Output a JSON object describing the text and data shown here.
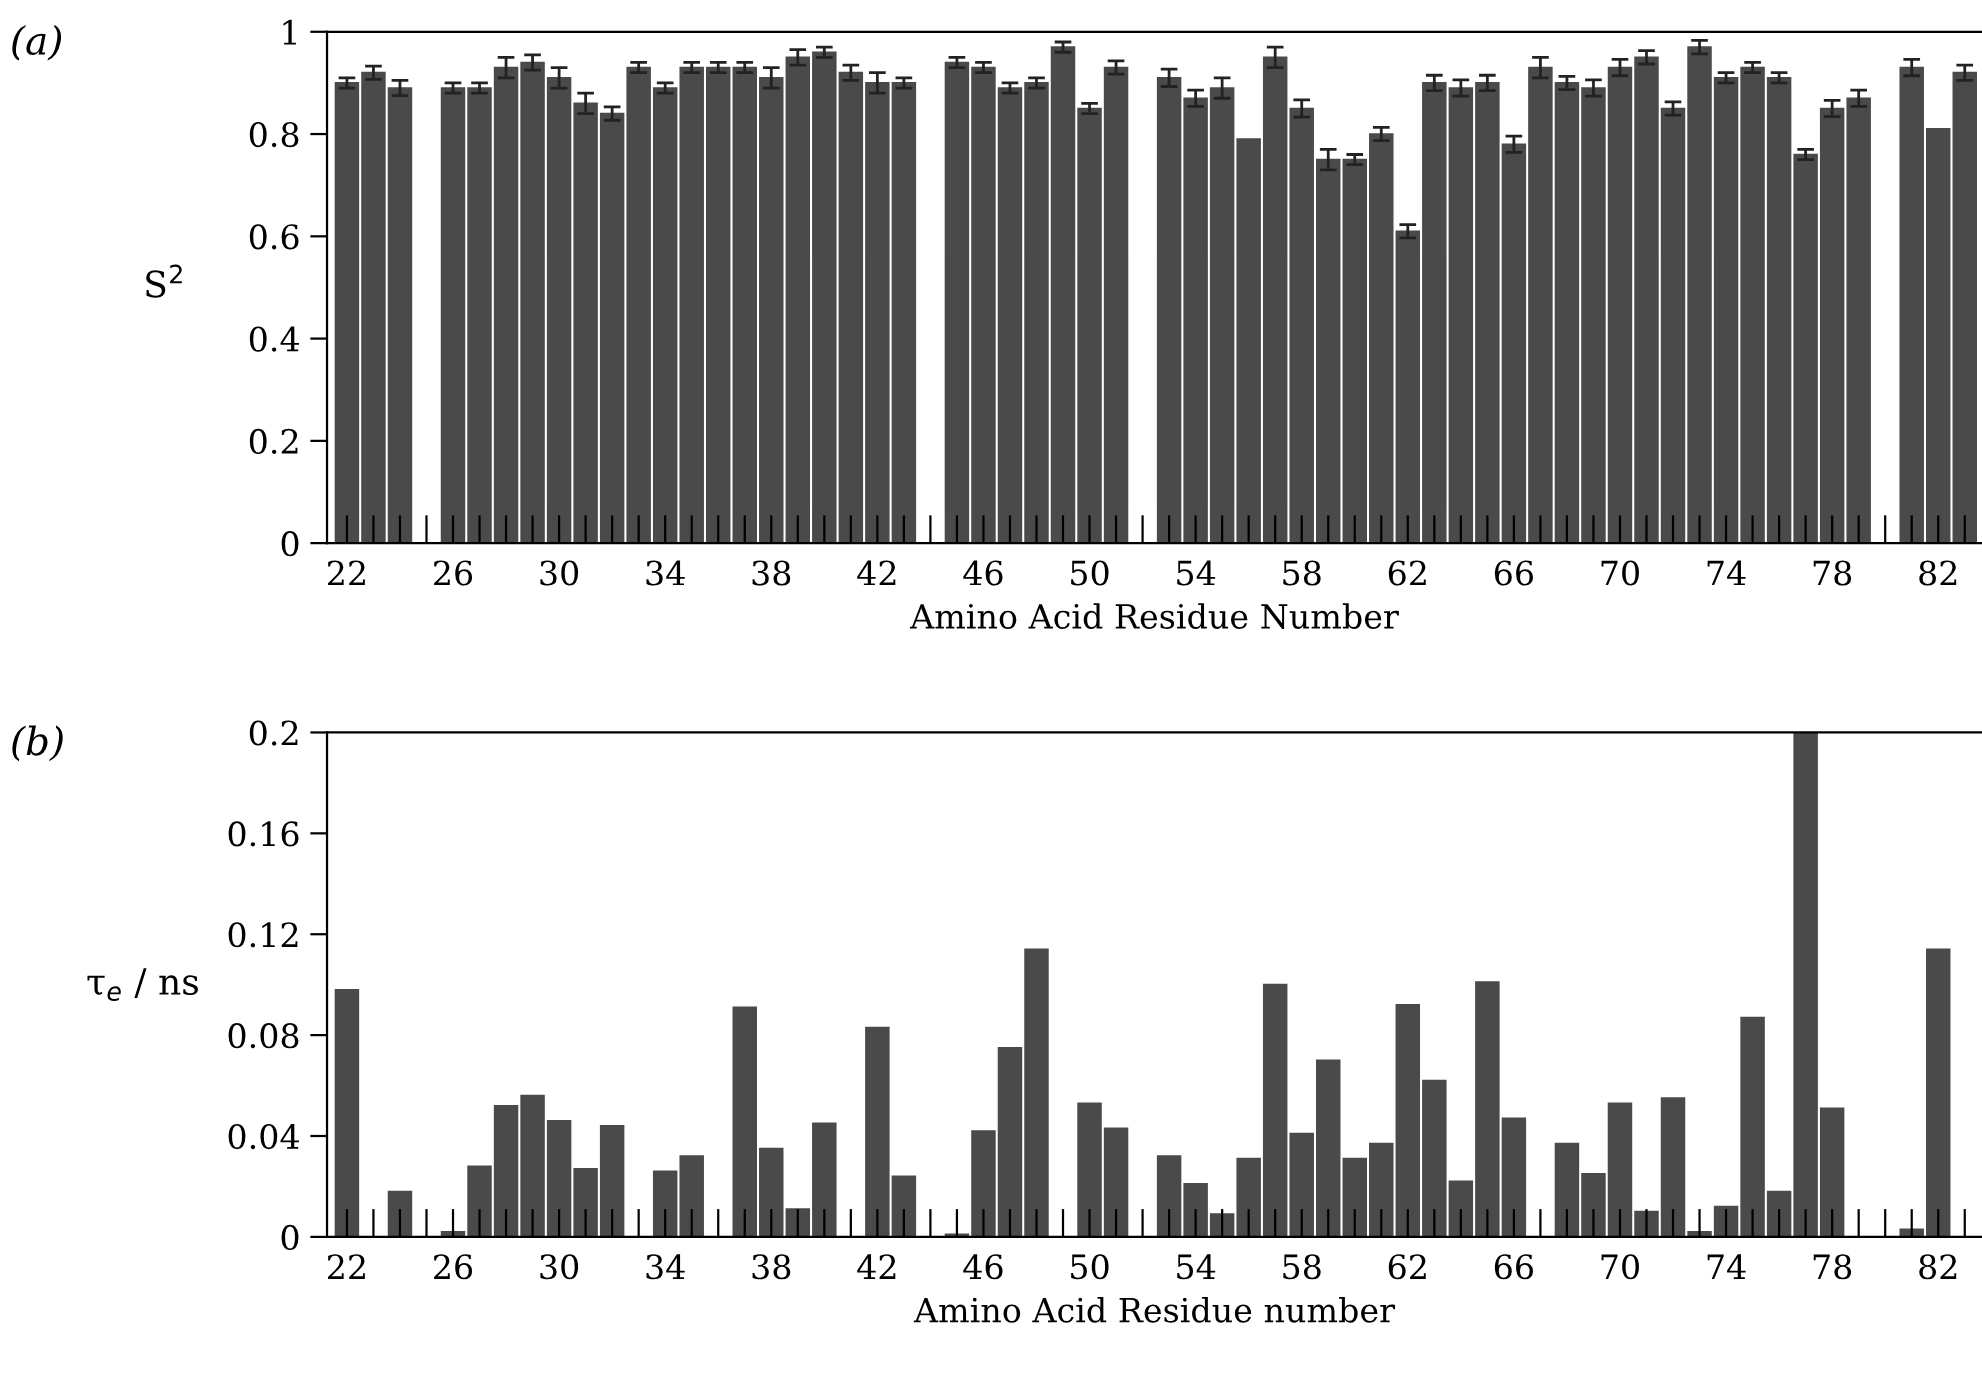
{
  "chart_data": [
    {
      "type": "bar",
      "ylabel": "S$^{2}$",
      "xlabel": "Amino Acid Residue Number",
      "annotations": [
        "(a)"
      ],
      "categories": [
        "22",
        null,
        null,
        null,
        "26",
        null,
        null,
        null,
        "30",
        null,
        null,
        null,
        "34",
        null,
        null,
        null,
        "38",
        null,
        null,
        null,
        "42",
        null,
        null,
        null,
        "46",
        null,
        null,
        null,
        "50",
        null,
        null,
        null,
        "54",
        null,
        null,
        null,
        "58",
        null,
        null,
        null,
        "62",
        null,
        null,
        null,
        "66",
        null,
        null,
        null,
        "70",
        null,
        null,
        null,
        "74",
        null,
        null,
        null,
        "78",
        null,
        null,
        null,
        "82",
        null
      ],
      "values": [
        0.9,
        0.92,
        0.89,
        null,
        0.89,
        0.89,
        0.93,
        0.94,
        0.91,
        0.86,
        0.84,
        0.93,
        0.89,
        0.93,
        0.93,
        0.93,
        0.91,
        0.95,
        0.96,
        0.92,
        0.9,
        0.9,
        null,
        0.94,
        0.93,
        0.89,
        0.9,
        0.97,
        0.85,
        0.93,
        null,
        0.91,
        0.87,
        0.89,
        0.79,
        0.95,
        0.85,
        0.75,
        0.75,
        0.8,
        0.61,
        0.9,
        0.89,
        0.9,
        0.78,
        0.93,
        0.9,
        0.89,
        0.93,
        0.95,
        0.85,
        0.97,
        0.91,
        0.93,
        0.91,
        0.76,
        0.85,
        0.87,
        null,
        0.93,
        0.81,
        0.92
      ],
      "errors": [
        0.01,
        0.013,
        0.015,
        null,
        0.01,
        0.01,
        0.02,
        0.015,
        0.02,
        0.02,
        0.013,
        0.01,
        0.01,
        0.01,
        0.01,
        0.01,
        0.02,
        0.015,
        0.01,
        0.015,
        0.02,
        0.01,
        null,
        0.01,
        0.01,
        0.01,
        0.01,
        0.01,
        0.01,
        0.013,
        null,
        0.017,
        0.016,
        0.02,
        null,
        0.02,
        0.017,
        0.02,
        0.01,
        0.013,
        0.013,
        0.015,
        0.016,
        0.015,
        0.016,
        0.02,
        0.013,
        0.016,
        0.016,
        0.013,
        0.013,
        0.013,
        0.01,
        0.01,
        0.01,
        0.01,
        0.016,
        0.016,
        null,
        0.016,
        null,
        0.015
      ],
      "color": "#4a4a4a",
      "ylim": [
        0,
        1
      ],
      "yticks": [
        0,
        0.2,
        0.4,
        0.6,
        0.8,
        1
      ],
      "grid": false,
      "legend": false
    },
    {
      "type": "bar",
      "ylabel": "τ$_{e}$ / ns",
      "xlabel": "Amino Acid Residue number",
      "annotations": [
        "(b)"
      ],
      "categories": [
        "22",
        null,
        null,
        null,
        "26",
        null,
        null,
        null,
        "30",
        null,
        null,
        null,
        "34",
        null,
        null,
        null,
        "38",
        null,
        null,
        null,
        "42",
        null,
        null,
        null,
        "46",
        null,
        null,
        null,
        "50",
        null,
        null,
        null,
        "54",
        null,
        null,
        null,
        "58",
        null,
        null,
        null,
        "62",
        null,
        null,
        null,
        "66",
        null,
        null,
        null,
        "70",
        null,
        null,
        null,
        "74",
        null,
        null,
        null,
        "78",
        null,
        null,
        null,
        "82",
        null
      ],
      "values": [
        0.098,
        0,
        0.018,
        null,
        0.002,
        0.028,
        0.052,
        0.056,
        0.046,
        0.027,
        0.044,
        0,
        0.026,
        0.032,
        0,
        0.091,
        0.035,
        0.011,
        0.045,
        0,
        0.083,
        0.024,
        null,
        0.001,
        0.042,
        0.075,
        0.114,
        0,
        0.053,
        0.043,
        null,
        0.032,
        0.021,
        0.009,
        0.031,
        0.1,
        0.041,
        0.07,
        0.031,
        0.037,
        0.092,
        0.062,
        0.022,
        0.101,
        0.047,
        0,
        0.037,
        0.025,
        0.053,
        0.01,
        0.055,
        0.002,
        0.012,
        0.087,
        0.018,
        0.2,
        0.051,
        0,
        null,
        0.003,
        0.114,
        0
      ],
      "color": "#4a4a4a",
      "ylim": [
        0,
        0.2
      ],
      "yticks": [
        0,
        0.04,
        0.08,
        0.12,
        0.16,
        0.2
      ],
      "grid": false,
      "legend": false
    }
  ]
}
